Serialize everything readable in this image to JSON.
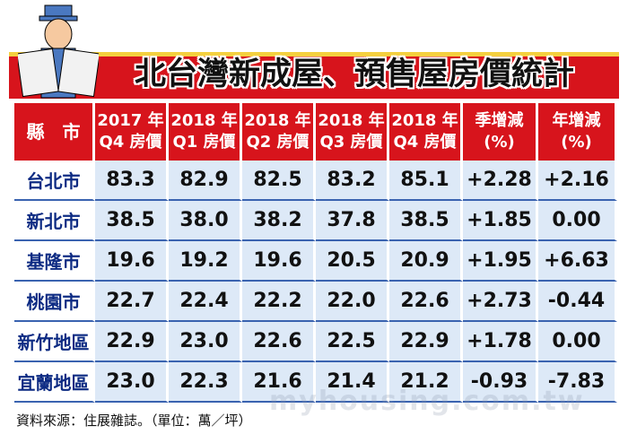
{
  "header": {
    "title": "北台灣新成屋、預售屋房價統計"
  },
  "table": {
    "columns": [
      [
        "縣　市"
      ],
      [
        "2017 年",
        "Q4 房價"
      ],
      [
        "2018 年",
        "Q1 房價"
      ],
      [
        "2018 年",
        "Q2 房價"
      ],
      [
        "2018 年",
        "Q3 房價"
      ],
      [
        "2018 年",
        "Q4 房價"
      ],
      [
        "季增減",
        "(%)"
      ],
      [
        "年增減",
        "(%)"
      ]
    ],
    "rows": [
      [
        "台北市",
        "83.3",
        "82.9",
        "82.5",
        "83.2",
        "85.1",
        "+2.28",
        "+2.16"
      ],
      [
        "新北市",
        "38.5",
        "38.0",
        "38.2",
        "37.8",
        "38.5",
        "+1.85",
        "0.00"
      ],
      [
        "基隆市",
        "19.6",
        "19.2",
        "19.6",
        "20.5",
        "20.9",
        "+1.95",
        "+6.63"
      ],
      [
        "桃園市",
        "22.7",
        "22.4",
        "22.2",
        "22.0",
        "22.6",
        "+2.73",
        "-0.44"
      ],
      [
        "新竹地區",
        "22.9",
        "23.0",
        "22.6",
        "22.5",
        "22.9",
        "+1.78",
        "0.00"
      ],
      [
        "宜蘭地區",
        "23.0",
        "22.3",
        "21.6",
        "21.4",
        "21.2",
        "-0.93",
        "-7.83"
      ]
    ]
  },
  "footer": {
    "source": "資料來源：住展雜誌。（單位：萬／坪）",
    "watermark": "myhousing.com.tw"
  }
}
